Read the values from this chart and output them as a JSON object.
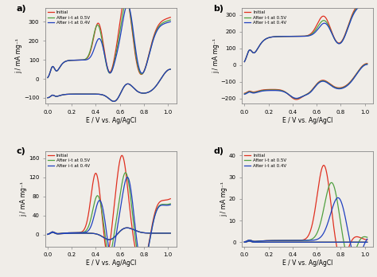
{
  "legend_labels": [
    "Initial",
    "After i-t at 0.5V",
    "After i-t at 0.4V"
  ],
  "colors": [
    "#e03020",
    "#50a040",
    "#2040c0"
  ],
  "panel_labels": [
    "a)",
    "b)",
    "c)",
    "d)"
  ],
  "xlabel": "E / V vs. Ag/AgCl",
  "ylabel_a": "j / mA mg⁻¹",
  "ylabel_b": "j / mA mg⁻¹",
  "ylabel_c": "j / mA mg⁻¹",
  "ylabel_d": "j / mA mg⁻¹",
  "panels": {
    "a": {
      "ylim": [
        -130,
        370
      ],
      "yticks": [
        -100,
        0,
        100,
        200,
        300
      ]
    },
    "b": {
      "ylim": [
        -230,
        340
      ],
      "yticks": [
        -200,
        -100,
        0,
        100,
        200,
        300
      ]
    },
    "c": {
      "ylim": [
        -25,
        175
      ],
      "yticks": [
        0,
        40,
        80,
        120,
        160
      ]
    },
    "d": {
      "ylim": [
        -2,
        42
      ],
      "yticks": [
        0,
        10,
        20,
        30,
        40
      ]
    }
  }
}
